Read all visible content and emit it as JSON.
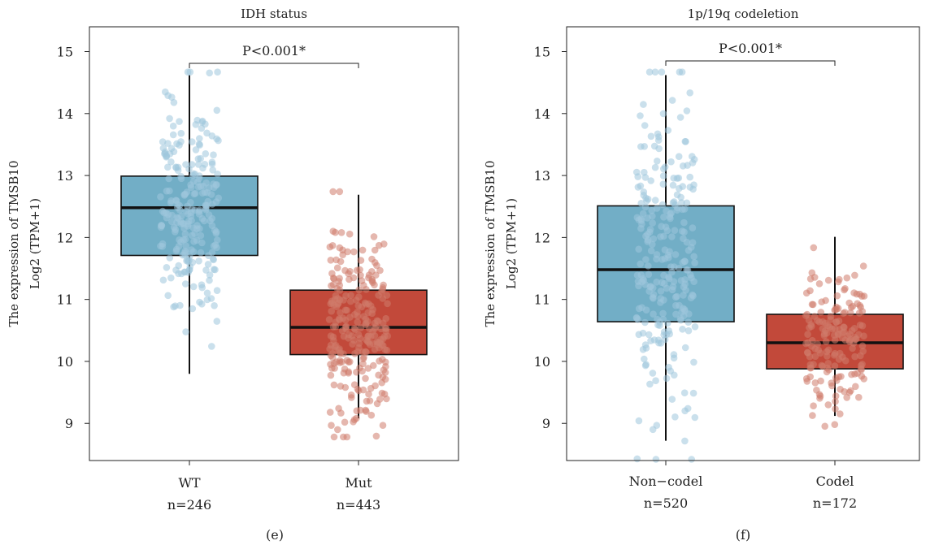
{
  "chart_data": [
    {
      "type": "box",
      "title": "IDH status",
      "ylabel_line1": "The expression of TMSB10",
      "ylabel_line2": "Log2 (TPM+1)",
      "ylim": [
        8.4,
        15.4
      ],
      "yticks": [
        "9",
        "10",
        "11",
        "12",
        "13",
        "14",
        "15"
      ],
      "pvalue": "P<0.001*",
      "panel_label": "(e)",
      "groups": [
        {
          "name": "WT",
          "n_label": "n=246",
          "color": "#72aec6",
          "point_color": "#9ec7dd",
          "q1": 11.71,
          "median": 12.48,
          "q3": 12.99,
          "whisker_low": 9.8,
          "whisker_high": 14.62,
          "n_points": 246
        },
        {
          "name": "Mut",
          "n_label": "n=443",
          "color": "#c2493a",
          "point_color": "#cf7b6c",
          "q1": 10.11,
          "median": 10.55,
          "q3": 11.15,
          "whisker_low": 9.08,
          "whisker_high": 12.69,
          "n_points": 443
        }
      ]
    },
    {
      "type": "box",
      "title": "1p/19q codeletion",
      "ylabel_line1": "The expression of TMSB10",
      "ylabel_line2": "Log2 (TPM+1)",
      "ylim": [
        8.4,
        15.4
      ],
      "yticks": [
        "9",
        "10",
        "11",
        "12",
        "13",
        "14",
        "15"
      ],
      "pvalue": "P<0.001*",
      "panel_label": "(f)",
      "groups": [
        {
          "name": "Non−codel",
          "n_label": "n=520",
          "color": "#72aec6",
          "point_color": "#9ec7dd",
          "q1": 10.64,
          "median": 11.48,
          "q3": 12.51,
          "whisker_low": 8.72,
          "whisker_high": 14.62,
          "n_points": 520
        },
        {
          "name": "Codel",
          "n_label": "n=172",
          "color": "#c2493a",
          "point_color": "#cf7b6c",
          "q1": 9.88,
          "median": 10.3,
          "q3": 10.76,
          "whisker_low": 9.12,
          "whisker_high": 12.01,
          "n_points": 172
        }
      ]
    }
  ]
}
